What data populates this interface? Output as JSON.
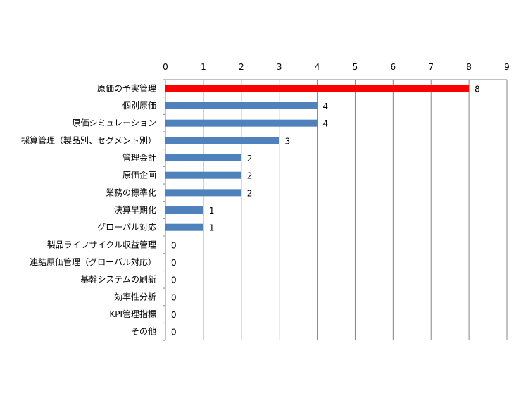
{
  "chart_data": {
    "type": "bar",
    "orientation": "horizontal",
    "categories": [
      "原価の予実管理",
      "個別原価",
      "原価シミュレーション",
      "採算管理（製品別、セグメント別）",
      "管理会計",
      "原価企画",
      "業務の標準化",
      "決算早期化",
      "グローバル対応",
      "製品ライフサイクル収益管理",
      "連結原価管理（グローバル対応）",
      "基幹システムの刷新",
      "効率性分析",
      "KPI管理指標",
      "その他"
    ],
    "values": [
      8,
      4,
      4,
      3,
      2,
      2,
      2,
      1,
      1,
      0,
      0,
      0,
      0,
      0,
      0
    ],
    "xlim": [
      0,
      9
    ],
    "x_ticks": [
      "0",
      "1",
      "2",
      "3",
      "4",
      "5",
      "6",
      "7",
      "8",
      "9"
    ],
    "x_axis_position": "top",
    "grid": true,
    "data_labels": true,
    "highlight_index": 0,
    "colors": {
      "bar": "#4f81bd",
      "highlight": "#ff0000",
      "grid": "#868686",
      "axis": "#868686"
    }
  }
}
